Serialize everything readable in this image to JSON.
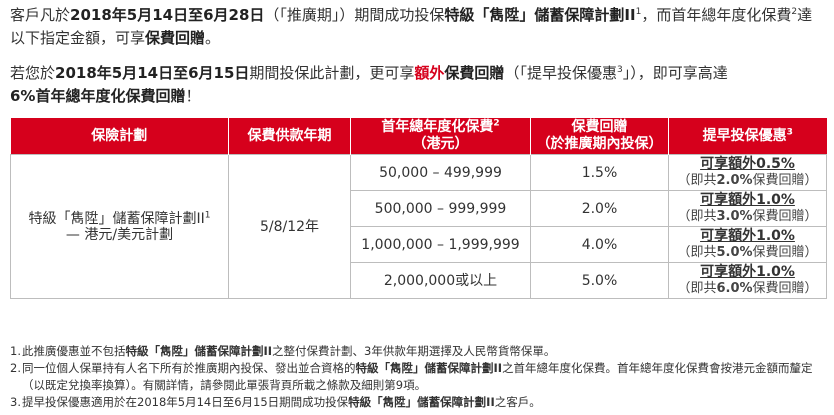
{
  "intro": {
    "p1_a": "客戶凡於",
    "p1_date": "2018年5月14日至6月28日",
    "p1_b": "（「推廣期」）期間成功投保",
    "p1_plan": "特級「雋陞」儲蓄保障計劃II",
    "p1_sup": "1",
    "p1_c": "，而首年總年度化保費",
    "p1_sup2": "2",
    "p1_d": "達以下指定金額，可享",
    "p1_rebate": "保費回贈",
    "p1_end": "。",
    "p2_a": "若您於",
    "p2_date": "2018年5月14日至6月15日",
    "p2_b": "期間投保此計劃，更可享",
    "p2_extra": "額外",
    "p2_c": "保費回贈",
    "p2_d": "（「提早投保優惠",
    "p2_sup": "3",
    "p2_e": "」），即可享高達",
    "p2_pct": "6%首年總年度化保費回贈",
    "p2_end": "！"
  },
  "table": {
    "headers": {
      "plan": "保險計劃",
      "years": "保費供款年期",
      "premium": "首年總年度化保費",
      "premium_sup": "2",
      "premium_sub": "（港元）",
      "rebate": "保費回贈",
      "rebate_sub": "（於推廣期內投保）",
      "early": "提早投保優惠",
      "early_sup": "3"
    },
    "plan_name": "特級「雋陞」儲蓄保障計劃II",
    "plan_sup": "1",
    "plan_sub": "— 港元/美元計劃",
    "years": "5/8/12年",
    "rows": [
      {
        "premium": "50,000 – 499,999",
        "rebate": "1.5%",
        "extra": "可享額外0.5%",
        "total_a": "（即共",
        "total_b": "2.0%",
        "total_c": "保費回贈）"
      },
      {
        "premium": "500,000 – 999,999",
        "rebate": "2.0%",
        "extra": "可享額外1.0%",
        "total_a": "（即共",
        "total_b": "3.0%",
        "total_c": "保費回贈）"
      },
      {
        "premium": "1,000,000 – 1,999,999",
        "rebate": "4.0%",
        "extra": "可享額外1.0%",
        "total_a": "（即共",
        "total_b": "5.0%",
        "total_c": "保費回贈）"
      },
      {
        "premium": "2,000,000或以上",
        "rebate": "5.0%",
        "extra": "可享額外1.0%",
        "total_a": "（即共",
        "total_b": "6.0%",
        "total_c": "保費回贈）"
      }
    ]
  },
  "notes": [
    {
      "num": "1.",
      "a": "此推廣優惠並不包括",
      "b": "特級「雋陞」儲蓄保障計劃II",
      "c": "之整付保費計劃、3年供款年期選擇及人民幣貨幣保單。"
    },
    {
      "num": "2.",
      "a": "同一位個人保單持有人名下所有於推廣期內投保、發出並合資格的",
      "b": "特級「雋陞」儲蓄保障計劃II",
      "c": "之首年總年度化保費。首年總年度化保費會按港元金額而釐定（以既定兌換率換算）。有關詳情，請參閱此單張背頁所載之條款及細則第9項。"
    },
    {
      "num": "3.",
      "a": "提早投保優惠適用於在2018年5月14日至6月15日期間成功投保",
      "b": "特級「雋陞」儲蓄保障計劃II",
      "c": "之客戶。"
    }
  ]
}
